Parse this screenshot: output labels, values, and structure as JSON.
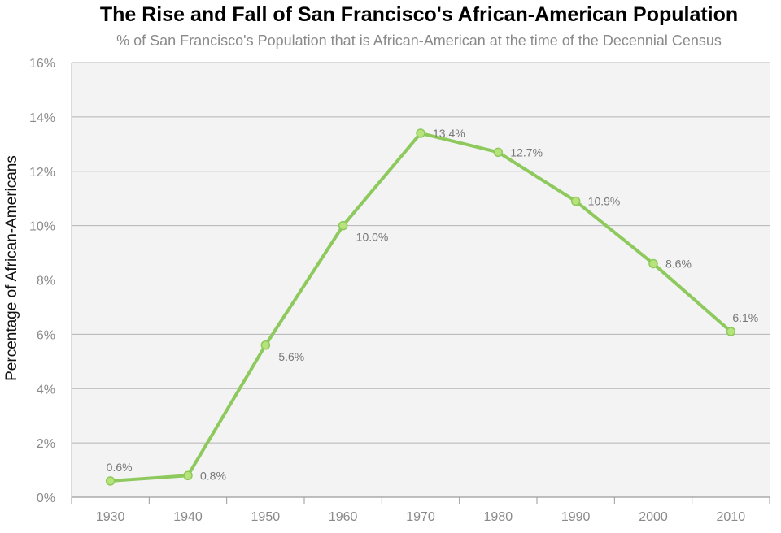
{
  "chart_data": {
    "type": "line",
    "title": "The Rise and Fall of San Francisco's African-American Population",
    "subtitle": "% of San Francisco's Population that is African-American at the time of the Decennial Census",
    "xlabel": "",
    "ylabel": "Percentage of African-Americans",
    "categories": [
      "1930",
      "1940",
      "1950",
      "1960",
      "1970",
      "1980",
      "1990",
      "2000",
      "2010"
    ],
    "values": [
      0.6,
      0.8,
      5.6,
      10.0,
      13.4,
      12.7,
      10.9,
      8.6,
      6.1
    ],
    "data_labels": [
      "0.6%",
      "0.8%",
      "5.6%",
      "10.0%",
      "13.4%",
      "12.7%",
      "10.9%",
      "8.6%",
      "6.1%"
    ],
    "ylim": [
      0,
      16
    ],
    "yticks": [
      0,
      2,
      4,
      6,
      8,
      10,
      12,
      14,
      16
    ],
    "ytick_labels": [
      "0%",
      "2%",
      "4%",
      "6%",
      "8%",
      "10%",
      "12%",
      "14%",
      "16%"
    ],
    "grid": true,
    "legend": "none",
    "colors": {
      "line": "#8dc95c",
      "marker_fill": "#b7e47a",
      "plot_background": "#f3f3f3",
      "gridline": "#b5b5b5",
      "tick_label": "#8a8a8a",
      "data_label": "#777777"
    }
  }
}
